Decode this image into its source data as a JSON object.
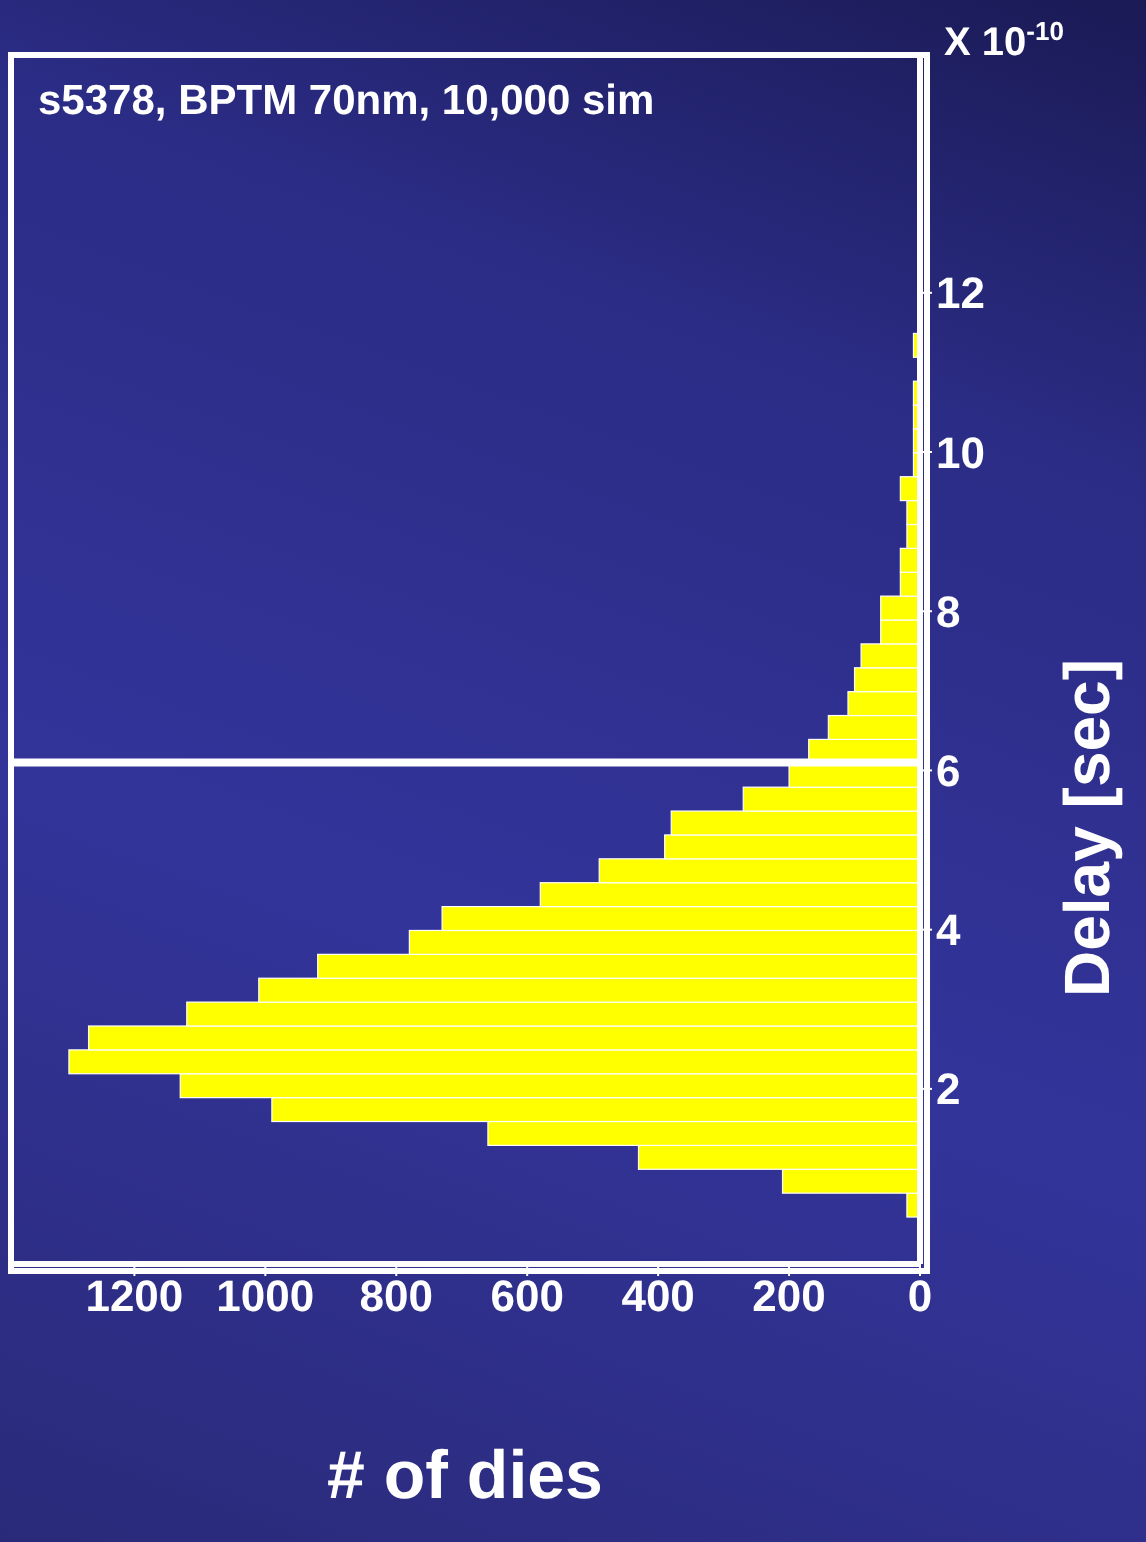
{
  "chart_data": {
    "type": "histogram",
    "orientation": "horizontal",
    "xlabel": "# of dies",
    "ylabel": "Delay [sec]",
    "bins": [
      0.4,
      0.7,
      1.0,
      1.3,
      1.6,
      1.9,
      2.2,
      2.5,
      2.8,
      3.1,
      3.4,
      3.7,
      4.0,
      4.3,
      4.6,
      4.9,
      5.2,
      5.5,
      5.8,
      6.1,
      6.4,
      6.7,
      7.0,
      7.3,
      7.6,
      7.9,
      8.2,
      8.5,
      8.8,
      9.1,
      9.4,
      9.7,
      10.0,
      10.3,
      10.6,
      10.9,
      11.2,
      11.5
    ],
    "values": [
      20,
      210,
      430,
      660,
      990,
      1130,
      1300,
      1270,
      1120,
      1010,
      920,
      780,
      730,
      580,
      490,
      390,
      380,
      270,
      200,
      170,
      140,
      110,
      100,
      90,
      60,
      60,
      30,
      30,
      20,
      20,
      30,
      10,
      10,
      10,
      10,
      0,
      10
    ],
    "color": "#ffff00",
    "xlim": [
      1390,
      0
    ],
    "xticks": [
      1200,
      1000,
      800,
      600,
      400,
      200,
      0
    ],
    "ylim": [
      -0.2,
      15
    ],
    "yticks": [
      2,
      4,
      6,
      8,
      10,
      12
    ],
    "ref_lines": [
      {
        "axis": "y",
        "value": 6.1,
        "color": "#ffffff"
      }
    ],
    "annotations": [
      "s5378, BPTM 70nm, 10,000 sim",
      "X 10$^{-10}$"
    ]
  }
}
